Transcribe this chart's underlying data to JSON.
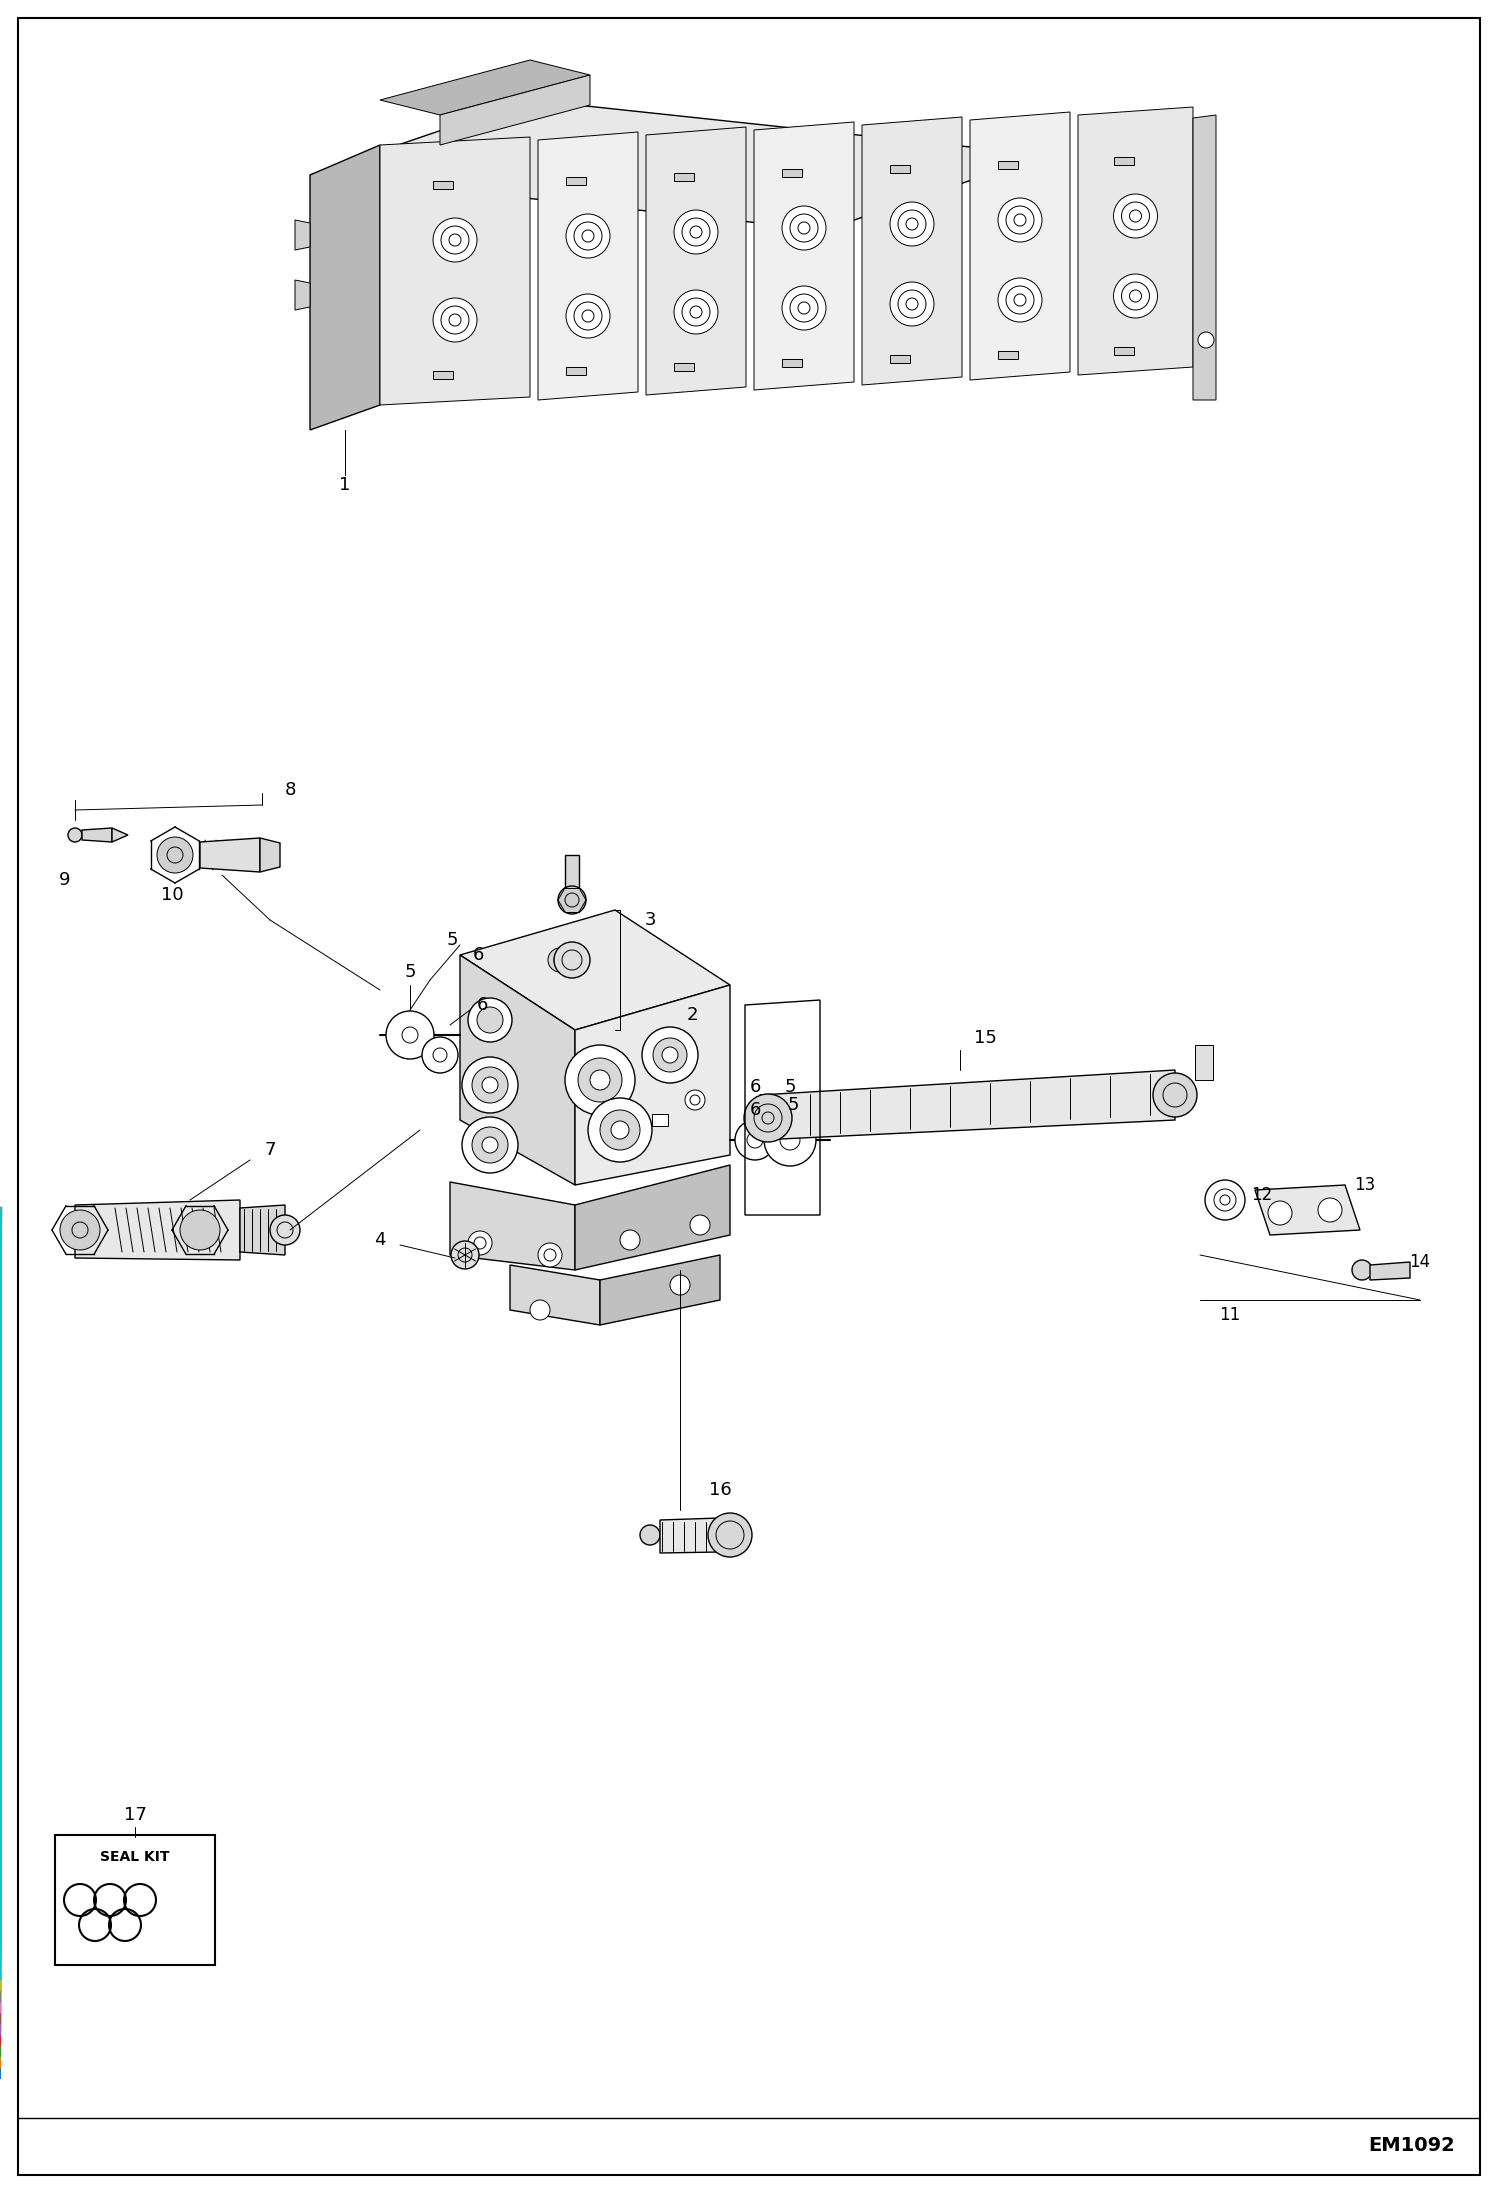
{
  "bg_color": "#ffffff",
  "border_color": "#000000",
  "line_color": "#000000",
  "footer_text": "EM1092",
  "seal_kit_text": "SEAL KIT",
  "fig_width": 14.98,
  "fig_height": 21.93,
  "dpi": 100
}
